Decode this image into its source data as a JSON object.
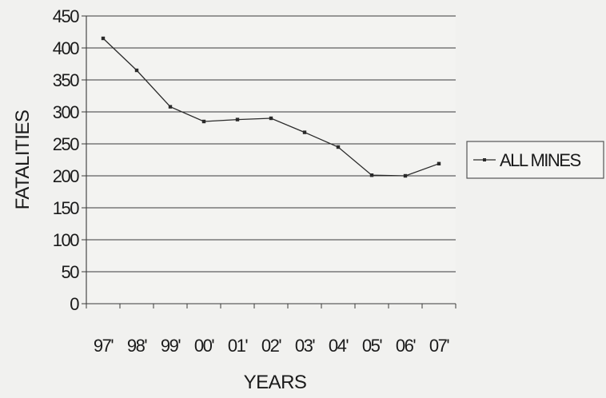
{
  "chart_data": {
    "type": "line",
    "categories": [
      "97'",
      "98'",
      "99'",
      "00'",
      "01'",
      "02'",
      "03'",
      "04'",
      "05'",
      "06'",
      "07'"
    ],
    "series": [
      {
        "name": "ALL MINES",
        "values": [
          415,
          365,
          308,
          285,
          288,
          290,
          268,
          245,
          201,
          200,
          219
        ],
        "color": "#2a2a2a"
      }
    ],
    "title": "",
    "xlabel": "YEARS",
    "ylabel": "FATALITIES",
    "ylim": [
      0,
      450
    ],
    "yticks": [
      0,
      50,
      100,
      150,
      200,
      250,
      300,
      350,
      400,
      450
    ],
    "grid": "horizontal",
    "legend": "right"
  }
}
